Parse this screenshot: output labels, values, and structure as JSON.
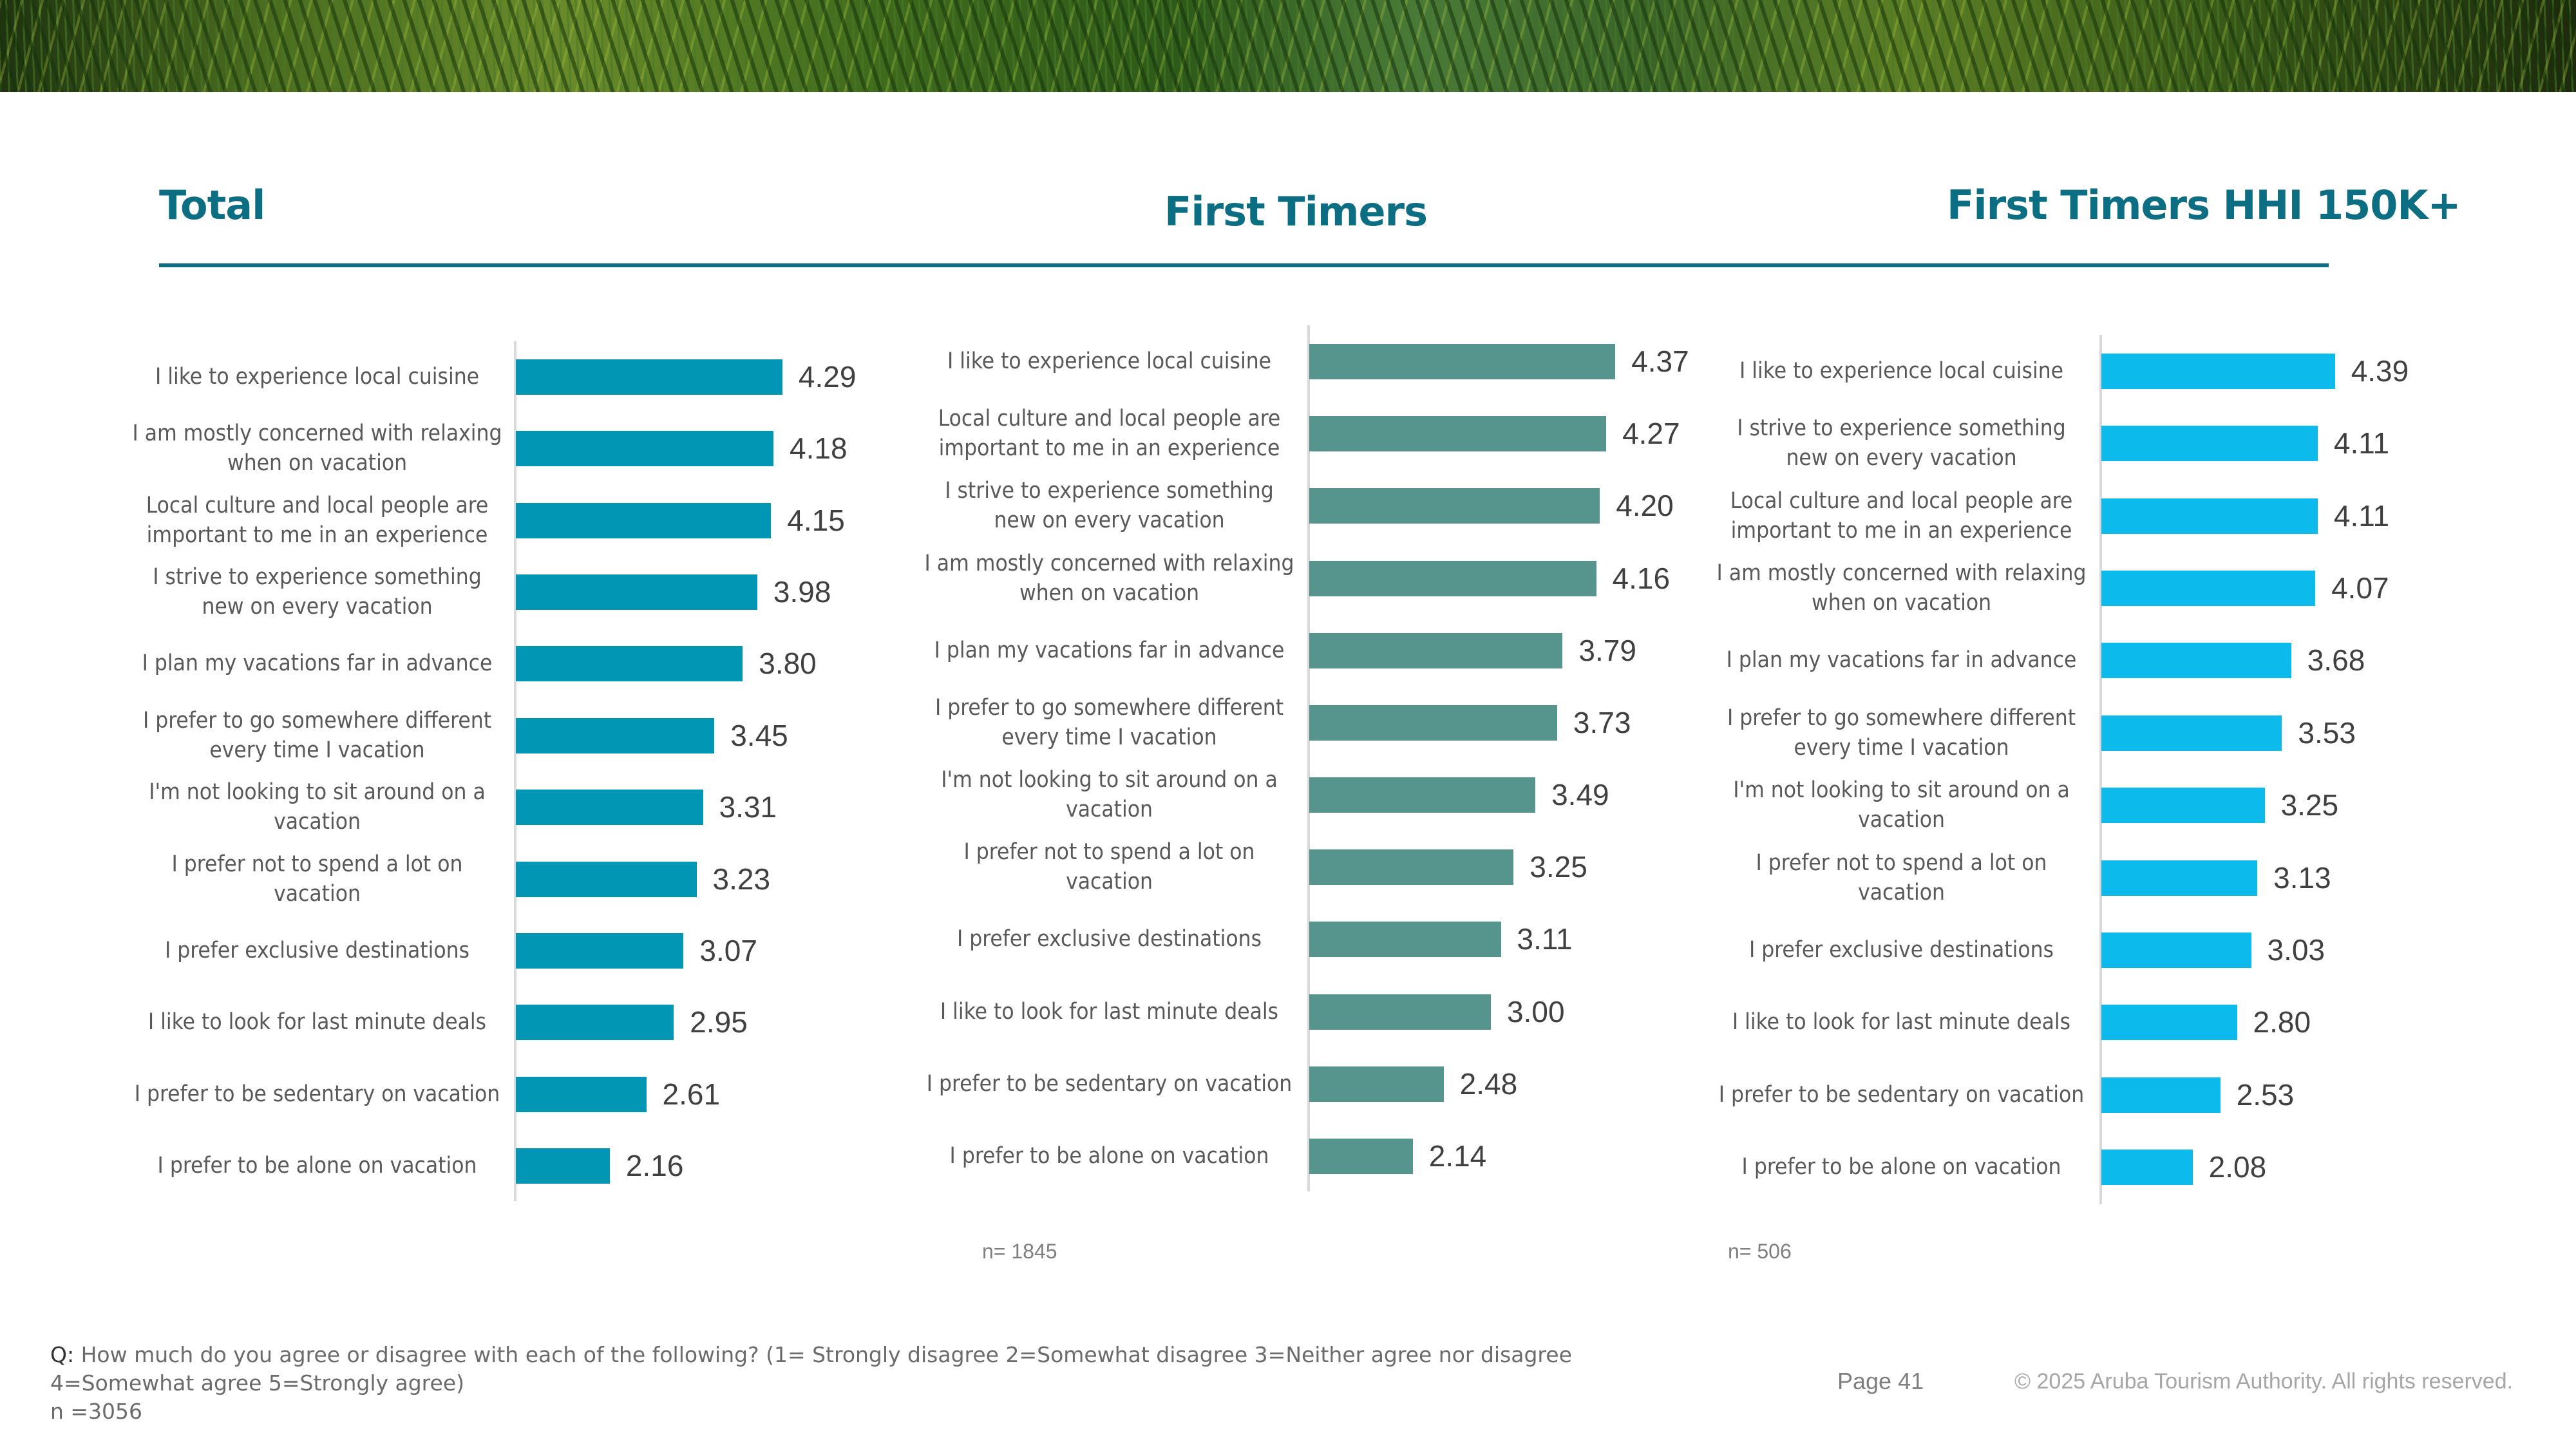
{
  "banner": {
    "icon": "palm-fronds-photo"
  },
  "charts_header": {
    "titles": [
      "Total",
      "First Timers",
      "First Timers HHI 150K+"
    ],
    "accent_color": "#0b6e82"
  },
  "chart_data": [
    {
      "type": "bar",
      "orientation": "horizontal",
      "title": "Total",
      "color": "#0096b4",
      "xlim": [
        1,
        5
      ],
      "categories": [
        "I like to experience local cuisine",
        "I am mostly concerned with relaxing when on vacation",
        "Local culture and local people are important to me in an experience",
        "I strive to experience something new on every vacation",
        "I plan my vacations far in advance",
        "I prefer to go somewhere different every time I vacation",
        "I'm not looking to sit around on a vacation",
        "I prefer not to spend a lot on vacation",
        "I prefer exclusive destinations",
        "I like to look for last minute deals",
        "I prefer to be sedentary on vacation",
        "I prefer to be alone on vacation"
      ],
      "values": [
        4.29,
        4.18,
        4.15,
        3.98,
        3.8,
        3.45,
        3.31,
        3.23,
        3.07,
        2.95,
        2.61,
        2.16
      ],
      "value_labels": [
        "4.29",
        "4.18",
        "4.15",
        "3.98",
        "3.80",
        "3.45",
        "3.31",
        "3.23",
        "3.07",
        "2.95",
        "2.61",
        "2.16"
      ],
      "n_label": ""
    },
    {
      "type": "bar",
      "orientation": "horizontal",
      "title": "First Timers",
      "color": "#56958d",
      "xlim": [
        1,
        5
      ],
      "categories": [
        "I like to experience local cuisine",
        "Local culture and local people are important to me in an experience",
        "I strive to experience something new on every vacation",
        "I am mostly concerned with relaxing when on vacation",
        "I plan my vacations far in advance",
        "I prefer to go somewhere different every time I vacation",
        "I'm not looking to sit around on a vacation",
        "I prefer not to spend a lot on vacation",
        "I prefer exclusive destinations",
        "I like to look for last minute deals",
        "I prefer to be sedentary on vacation",
        "I prefer to be alone on vacation"
      ],
      "values": [
        4.37,
        4.27,
        4.2,
        4.16,
        3.79,
        3.73,
        3.49,
        3.25,
        3.11,
        3.0,
        2.48,
        2.14
      ],
      "value_labels": [
        "4.37",
        "4.27",
        "4.20",
        "4.16",
        "3.79",
        "3.73",
        "3.49",
        "3.25",
        "3.11",
        "3.00",
        "2.48",
        "2.14"
      ],
      "n_label": "n= 1845"
    },
    {
      "type": "bar",
      "orientation": "horizontal",
      "title": "First Timers HHI 150K+",
      "color": "#0dbaec",
      "xlim": [
        0.6,
        5
      ],
      "categories": [
        "I like to experience local cuisine",
        "I strive to experience something new on every vacation",
        "Local culture and local people are important to me in an experience",
        "I am mostly concerned with relaxing when on vacation",
        "I plan my vacations far in advance",
        "I prefer to go somewhere different every time I vacation",
        "I'm not looking to sit around on a vacation",
        "I prefer not to spend a lot on vacation",
        "I prefer exclusive destinations",
        "I like to look for last minute deals",
        "I prefer to be sedentary on vacation",
        "I prefer to be alone on vacation"
      ],
      "values": [
        4.39,
        4.11,
        4.11,
        4.07,
        3.68,
        3.53,
        3.25,
        3.13,
        3.03,
        2.8,
        2.53,
        2.08
      ],
      "value_labels": [
        "4.39",
        "4.11",
        "4.11",
        "4.07",
        "3.68",
        "3.53",
        "3.25",
        "3.13",
        "3.03",
        "2.80",
        "2.53",
        "2.08"
      ],
      "n_label": "n= 506"
    }
  ],
  "footer": {
    "question_prefix": "Q:",
    "question_text": " How much do you agree or disagree with each of the following? (1= Strongly disagree 2=Somewhat disagree 3=Neither agree nor disagree 4=Somewhat agree 5=Strongly agree)",
    "n_total": "n =3056",
    "page": "Page 41",
    "copyright": "© 2025 Aruba Tourism Authority. All rights reserved."
  }
}
